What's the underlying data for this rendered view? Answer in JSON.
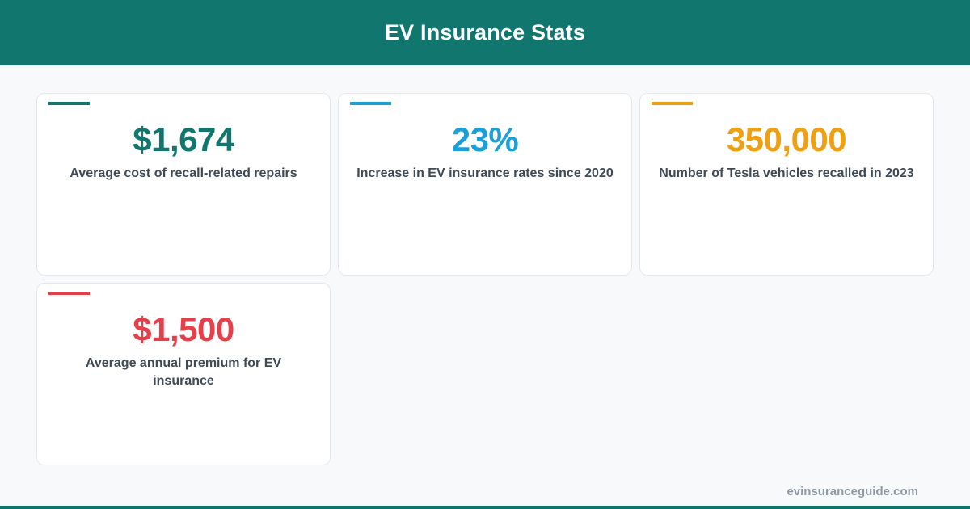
{
  "header": {
    "title": "EV Insurance Stats"
  },
  "stats": [
    {
      "value": "$1,674",
      "description": "Average cost of recall-related repairs",
      "color": "#10766e"
    },
    {
      "value": "23%",
      "description": "Increase in EV insurance rates since 2020",
      "color": "#1a9fd6"
    },
    {
      "value": "350,000",
      "description": "Number of Tesla vehicles recalled in 2023",
      "color": "#ef9f12"
    },
    {
      "value": "$1,500",
      "description": "Average annual premium for EV insurance",
      "color": "#e5404a"
    }
  ],
  "footer": {
    "domain": "evinsuranceguide.com"
  }
}
